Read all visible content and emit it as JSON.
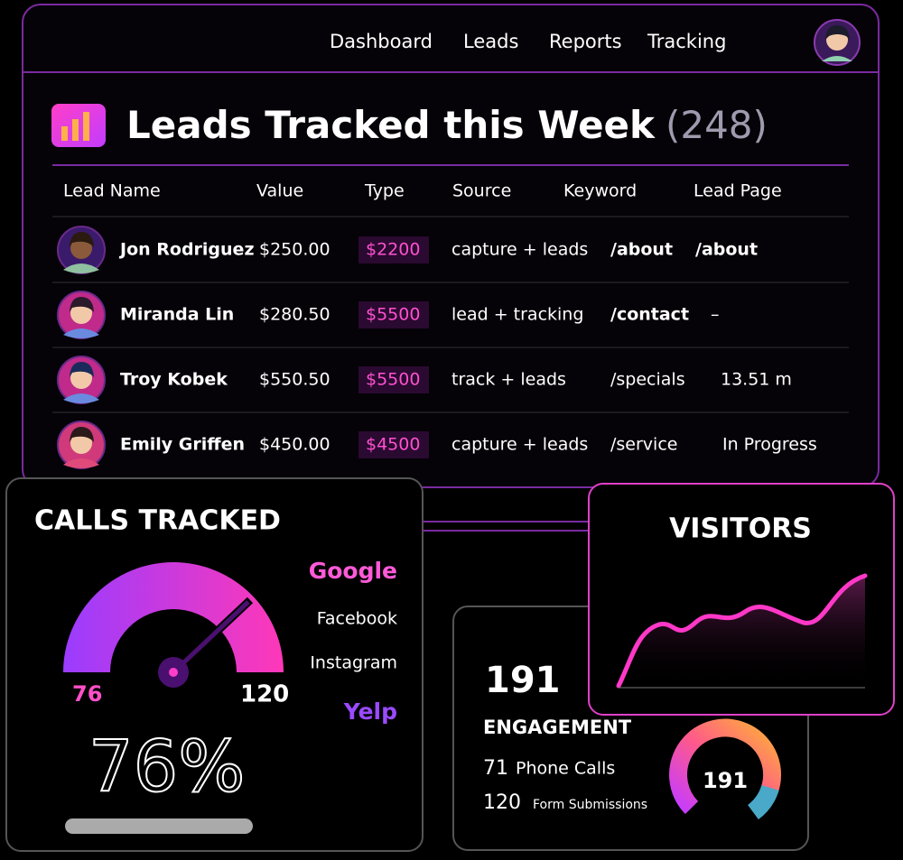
{
  "nav": {
    "items": [
      "Dashboard",
      "Leads",
      "Reports",
      "Tracking"
    ]
  },
  "header": {
    "title": "Leads Tracked this Week",
    "count": "(248)"
  },
  "table": {
    "columns": [
      "Lead Name",
      "Value",
      "Type",
      "Source",
      "Keyword",
      "Lead Page"
    ],
    "rows": [
      [
        "Jon Rodriguez",
        "$250.00",
        "$2200",
        "capture + leads",
        "/about",
        "/about"
      ],
      [
        "Miranda Lin",
        "$280.50",
        "$5500",
        "lead + tracking",
        "/contact",
        "–"
      ],
      [
        "Troy Kobek",
        "$550.50",
        "$5500",
        "track + leads",
        "/specials",
        "13.51 m"
      ],
      [
        "Emily Griffen",
        "$450.00",
        "$4500",
        "capture + leads",
        "/service",
        "In Progress"
      ]
    ]
  },
  "calls": {
    "title": "CALLS TRACKED",
    "min": 76,
    "max": 120,
    "percent": "76%",
    "sources": [
      "Google",
      "Facebook",
      "Instagram",
      "Yelp"
    ]
  },
  "engagement": {
    "total": 191,
    "title": "ENGAGEMENT",
    "items": [
      {
        "value": 71,
        "label": "Phone Calls"
      },
      {
        "value": 120,
        "label": "Form Submissions"
      }
    ],
    "donut_label": 191
  },
  "visitors": {
    "title": "VISITORS"
  }
}
